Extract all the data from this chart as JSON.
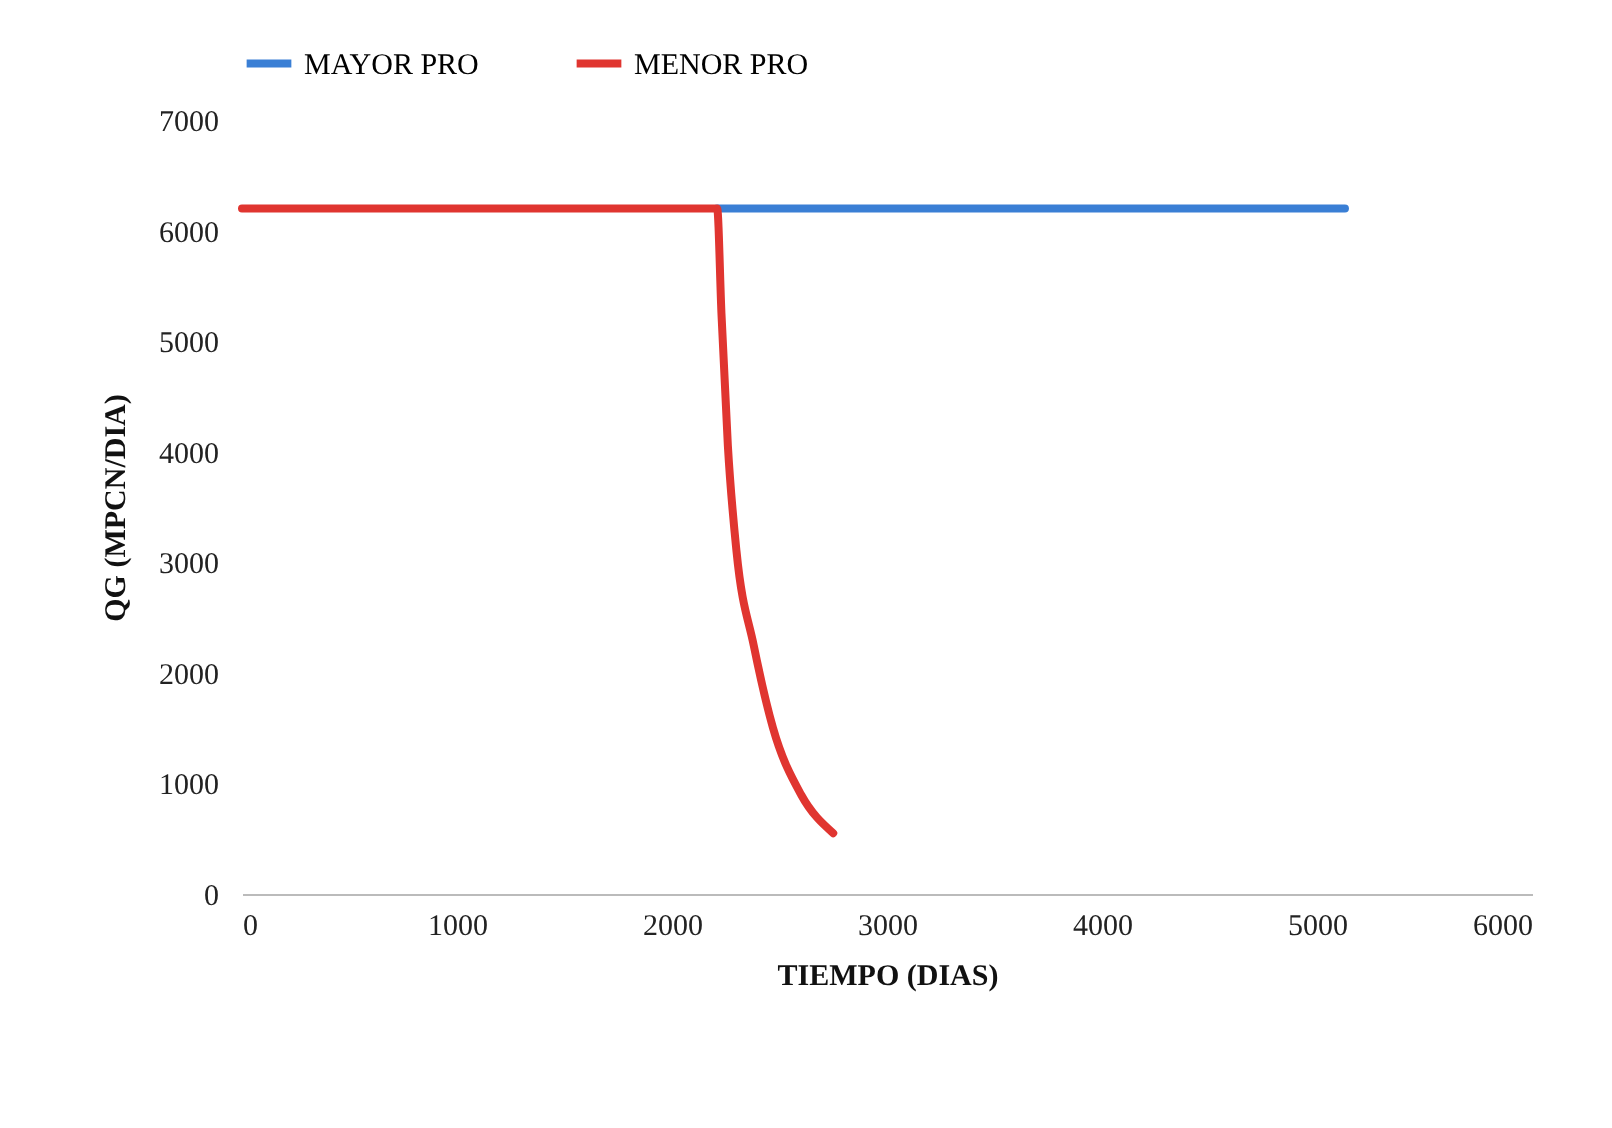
{
  "chart_data": {
    "type": "line",
    "xlabel": "TIEMPO (DIAS)",
    "ylabel": "QG (MPCN/DIA)",
    "xlim": [
      0,
      6000
    ],
    "xticks": [
      0,
      1000,
      2000,
      3000,
      4000,
      5000,
      6000
    ],
    "ylim": [
      0,
      7000
    ],
    "yticks": [
      0,
      1000,
      2000,
      3000,
      4000,
      5000,
      6000,
      7000
    ],
    "grid": false,
    "legend": "top",
    "line_style": "solid",
    "marker": "none",
    "series": [
      {
        "name": "MAYOR PRO",
        "color": "#3a7fd5",
        "x": [
          2210,
          5130
        ],
        "values": [
          6200,
          6200
        ]
      },
      {
        "name": "MENOR PRO",
        "color": "#e03530",
        "x": [
          0,
          2210,
          2230,
          2260,
          2300,
          2380,
          2470,
          2600,
          2750
        ],
        "values": [
          6200,
          6200,
          5250,
          4050,
          3100,
          2250,
          1500,
          900,
          550
        ]
      }
    ]
  }
}
